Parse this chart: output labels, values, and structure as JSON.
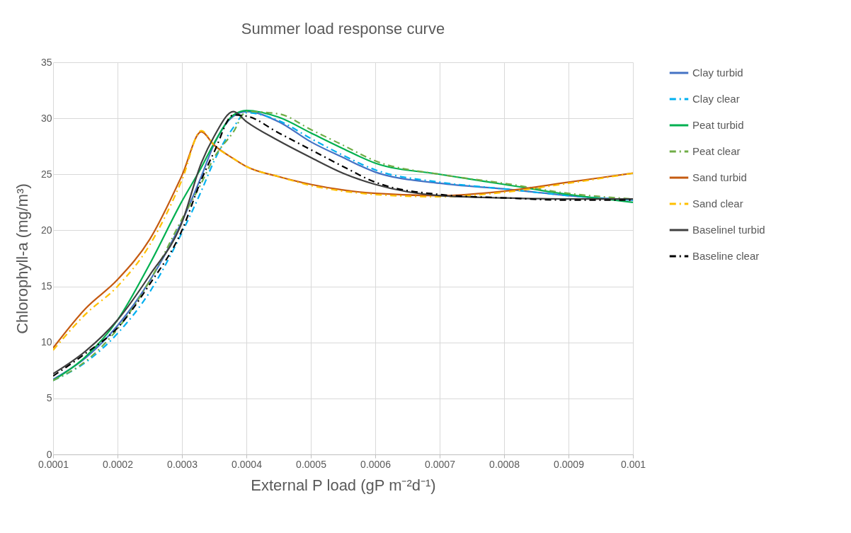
{
  "chart_data": {
    "type": "line",
    "title": "Summer load response curve",
    "xlabel": "External P load (gP m⁻²d⁻¹)",
    "ylabel": "Chlorophyll-a (mg/m³)",
    "x": [
      0.0001,
      0.00015,
      0.0002,
      0.00025,
      0.0003,
      0.00033,
      0.00035,
      0.00038,
      0.0004,
      0.00045,
      0.0005,
      0.00055,
      0.0006,
      0.0007,
      0.0008,
      0.0009,
      0.001
    ],
    "xlim": [
      0.0001,
      0.001
    ],
    "xticks": [
      0.0001,
      0.0002,
      0.0003,
      0.0004,
      0.0005,
      0.0006,
      0.0007,
      0.0008,
      0.0009,
      0.001
    ],
    "ylim": [
      0,
      35
    ],
    "yticks": [
      0,
      5,
      10,
      15,
      20,
      25,
      30,
      35
    ],
    "grid": true,
    "legend": "right",
    "marker": "none",
    "series": [
      {
        "name": "Clay turbid",
        "color": "#4472c4",
        "line_style": "solid",
        "values": [
          6.7,
          8.6,
          11.5,
          15.5,
          20.8,
          24.8,
          27.7,
          30.2,
          30.6,
          29.7,
          27.9,
          26.5,
          25.2,
          24.2,
          23.7,
          23.1,
          22.7
        ]
      },
      {
        "name": "Clay clear",
        "color": "#00b0f0",
        "line_style": "dashed",
        "values": [
          6.6,
          8.2,
          10.8,
          14.5,
          19.8,
          23.5,
          26.2,
          29.2,
          30.5,
          29.8,
          28.2,
          26.7,
          25.4,
          24.3,
          23.7,
          23.1,
          22.7
        ]
      },
      {
        "name": "Peat turbid",
        "color": "#00b050",
        "line_style": "solid",
        "values": [
          6.6,
          8.7,
          12,
          17,
          22.6,
          25.6,
          27.8,
          30.3,
          30.7,
          30.1,
          28.7,
          27.3,
          26.0,
          25.0,
          24.1,
          23.2,
          22.5
        ]
      },
      {
        "name": "Peat clear",
        "color": "#70ad47",
        "line_style": "dashed",
        "values": [
          6.6,
          8.3,
          11.2,
          15.5,
          21,
          24.2,
          26.5,
          28.8,
          30.6,
          30.4,
          29.0,
          27.6,
          26.2,
          25.0,
          24.2,
          23.3,
          22.8
        ]
      },
      {
        "name": "Sand turbid",
        "color": "#c55a11",
        "line_style": "solid",
        "values": [
          9.5,
          13,
          15.6,
          19.2,
          24.9,
          28.8,
          27.6,
          26.4,
          25.7,
          24.8,
          24.1,
          23.6,
          23.3,
          23.1,
          23.5,
          24.3,
          25.1
        ]
      },
      {
        "name": "Sand clear",
        "color": "#ffc000",
        "line_style": "dashed",
        "values": [
          9.3,
          12.5,
          15,
          18.7,
          24.5,
          28.9,
          27.6,
          26.4,
          25.7,
          24.8,
          24.0,
          23.5,
          23.2,
          23.0,
          23.4,
          24.2,
          25.1
        ]
      },
      {
        "name": "Baselinel turbid",
        "color": "#404040",
        "line_style": "solid",
        "values": [
          7.2,
          9.2,
          12,
          16,
          20.7,
          26,
          28.4,
          30.6,
          29.7,
          28.0,
          26.5,
          25.1,
          24.1,
          23.1,
          22.9,
          22.8,
          22.8
        ]
      },
      {
        "name": "Baseline clear",
        "color": "#000000",
        "line_style": "dashed",
        "values": [
          7.0,
          9,
          11.3,
          15.2,
          20,
          24.5,
          27,
          30.3,
          30.2,
          28.7,
          27.2,
          25.7,
          24.3,
          23.2,
          22.9,
          22.7,
          22.7
        ]
      }
    ]
  }
}
